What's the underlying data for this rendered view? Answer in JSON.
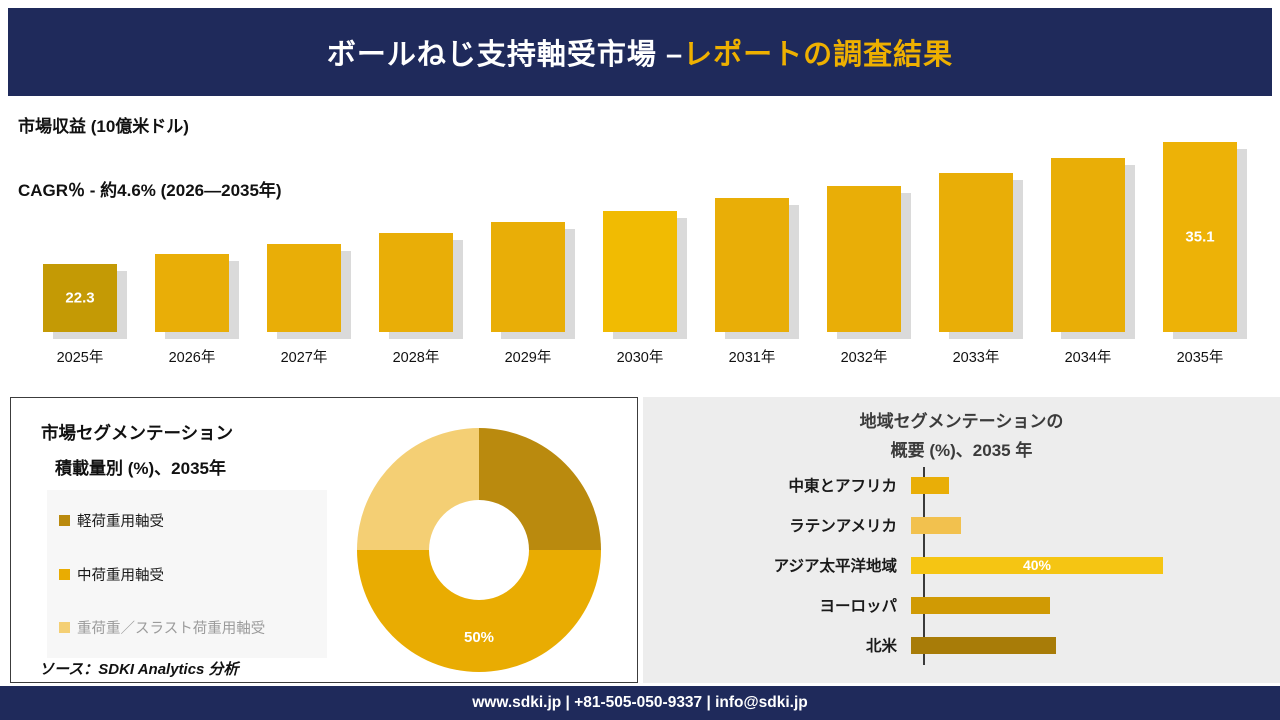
{
  "header": {
    "title_main": "ボールねじ支持軸受市場 –",
    "title_accent": "レポートの調査結果"
  },
  "revenue_section": {
    "metric_label": "市場収益 (10億米ドル)",
    "cagr_label": "CAGR％ - 約4.6% (2026―2035年)"
  },
  "segmentation_panel": {
    "title_line1": "市場セグメンテーション",
    "title_line2": "積載量別 (%)、2035年",
    "legend": [
      {
        "label": "軽荷重用軸受",
        "color": "#ba8a0e",
        "text_color": "#1a1a1a"
      },
      {
        "label": "中荷重用軸受",
        "color": "#e9ac02",
        "text_color": "#1a1a1a"
      },
      {
        "label": "重荷重／スラスト荷重用軸受",
        "color": "#f4cf74",
        "text_color": "#9b9b9b"
      }
    ],
    "source_note": "ソース：SDKI Analytics 分析"
  },
  "region_panel": {
    "title_line1": "地域セグメンテーションの",
    "title_line2": "概要 (%)、2035 年"
  },
  "footer": {
    "contact_line": "www.sdki.jp | +81-505-050-9337 | info@sdki.jp"
  },
  "colors": {
    "navy": "#1f2a5b",
    "accent_gold": "#eeb000"
  },
  "chart_data": [
    {
      "type": "bar",
      "title": "市場収益 (10億米ドル)",
      "subtitle": "CAGR％ - 約4.6% (2026―2035年)",
      "categories": [
        "2025年",
        "2026年",
        "2027年",
        "2028年",
        "2029年",
        "2030年",
        "2031年",
        "2032年",
        "2033年",
        "2034年",
        "2035年"
      ],
      "values": [
        22.3,
        23.3,
        24.4,
        25.5,
        26.7,
        27.9,
        29.2,
        30.5,
        31.9,
        33.4,
        35.1
      ],
      "data_labels": [
        "22.3",
        "",
        "",
        "",
        "",
        "",
        "",
        "",
        "",
        "",
        "35.1"
      ],
      "bar_colors": [
        "#c49a05",
        "#e9ae07",
        "#e9ae07",
        "#e9ae07",
        "#e9ae07",
        "#f1bb02",
        "#e9ae07",
        "#e9ae07",
        "#e9ae07",
        "#e9ae07",
        "#edb207"
      ],
      "ylabel": "市場収益 (10億米ドル)",
      "grid": false,
      "legend_position": "none"
    },
    {
      "type": "pie",
      "subtype": "donut",
      "title": "市場セグメンテーション 積載量別 (%)、2035年",
      "labels": [
        "軽荷重用軸受",
        "中荷重用軸受",
        "重荷重／スラスト荷重用軸受"
      ],
      "values": [
        25,
        50,
        25
      ],
      "colors": [
        "#ba8a0e",
        "#e9ac02",
        "#f4cf74"
      ],
      "data_labels": [
        "",
        "50%",
        ""
      ],
      "legend_position": "left"
    },
    {
      "type": "bar",
      "orientation": "horizontal",
      "title": "地域セグメンテーションの概要 (%)、2035 年",
      "categories": [
        "中東とアフリカ",
        "ラテンアメリカ",
        "アジア太平洋地域",
        "ヨーロッパ",
        "北米"
      ],
      "values": [
        6,
        8,
        40,
        22,
        23
      ],
      "colors": [
        "#e9ae07",
        "#f2c14e",
        "#f5c513",
        "#d09a04",
        "#a87c08"
      ],
      "data_labels": [
        "",
        "",
        "40%",
        "",
        ""
      ],
      "xlim": [
        0,
        45
      ],
      "grid": false
    }
  ]
}
